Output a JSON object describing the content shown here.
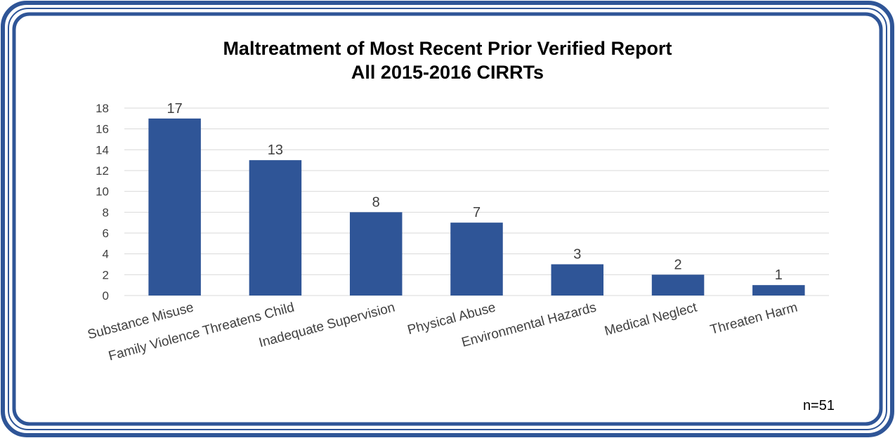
{
  "chart_data": {
    "type": "bar",
    "title": "Maltreatment of Most Recent Prior Verified Report",
    "subtitle": "All 2015-2016 CIRRTs",
    "categories": [
      "Substance Misuse",
      "Family Violence Threatens Child",
      "Inadequate Supervision",
      "Physical Abuse",
      "Environmental Hazards",
      "Medical Neglect",
      "Threaten Harm"
    ],
    "values": [
      17,
      13,
      8,
      7,
      3,
      2,
      1
    ],
    "color": "#2f5597",
    "ylim": [
      0,
      18
    ],
    "yticks": [
      0,
      2,
      4,
      6,
      8,
      10,
      12,
      14,
      16,
      18
    ],
    "grid": true,
    "annotation": "n=51"
  }
}
